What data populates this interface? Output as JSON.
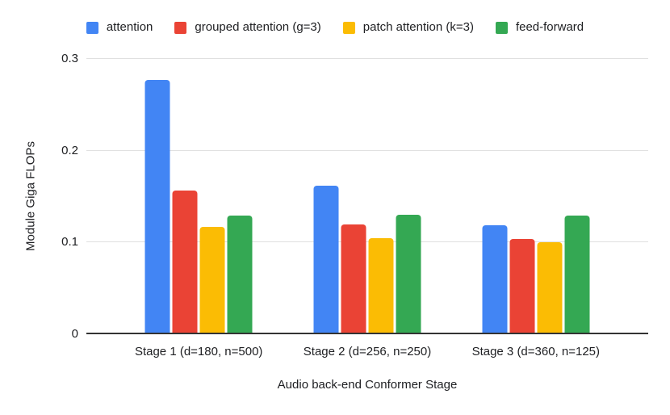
{
  "chart_data": {
    "type": "bar",
    "title": "",
    "xlabel": "Audio back-end Conformer Stage",
    "ylabel": "Module Giga FLOPs",
    "categories": [
      "Stage 1 (d=180, n=500)",
      "Stage 2 (d=256, n=250)",
      "Stage 3 (d=360, n=125)"
    ],
    "series": [
      {
        "name": "attention",
        "color": "#4285F4",
        "values": [
          0.277,
          0.162,
          0.119
        ]
      },
      {
        "name": "grouped attention (g=3)",
        "color": "#EA4335",
        "values": [
          0.157,
          0.12,
          0.104
        ]
      },
      {
        "name": "patch attention (k=3)",
        "color": "#FBBC04",
        "values": [
          0.117,
          0.105,
          0.1
        ]
      },
      {
        "name": "feed-forward",
        "color": "#34A853",
        "values": [
          0.129,
          0.13,
          0.129
        ]
      }
    ],
    "ylim": [
      0,
      0.3
    ],
    "yticks": [
      0,
      0.1,
      0.2,
      0.3
    ],
    "ytick_labels": [
      "0",
      "0.1",
      "0.2",
      "0.3"
    ],
    "grid": true,
    "legend_position": "top"
  },
  "colors": {
    "background": "#ffffff",
    "gridline": "#e0e0e0",
    "axis_line": "#333333",
    "text": "#202124"
  }
}
